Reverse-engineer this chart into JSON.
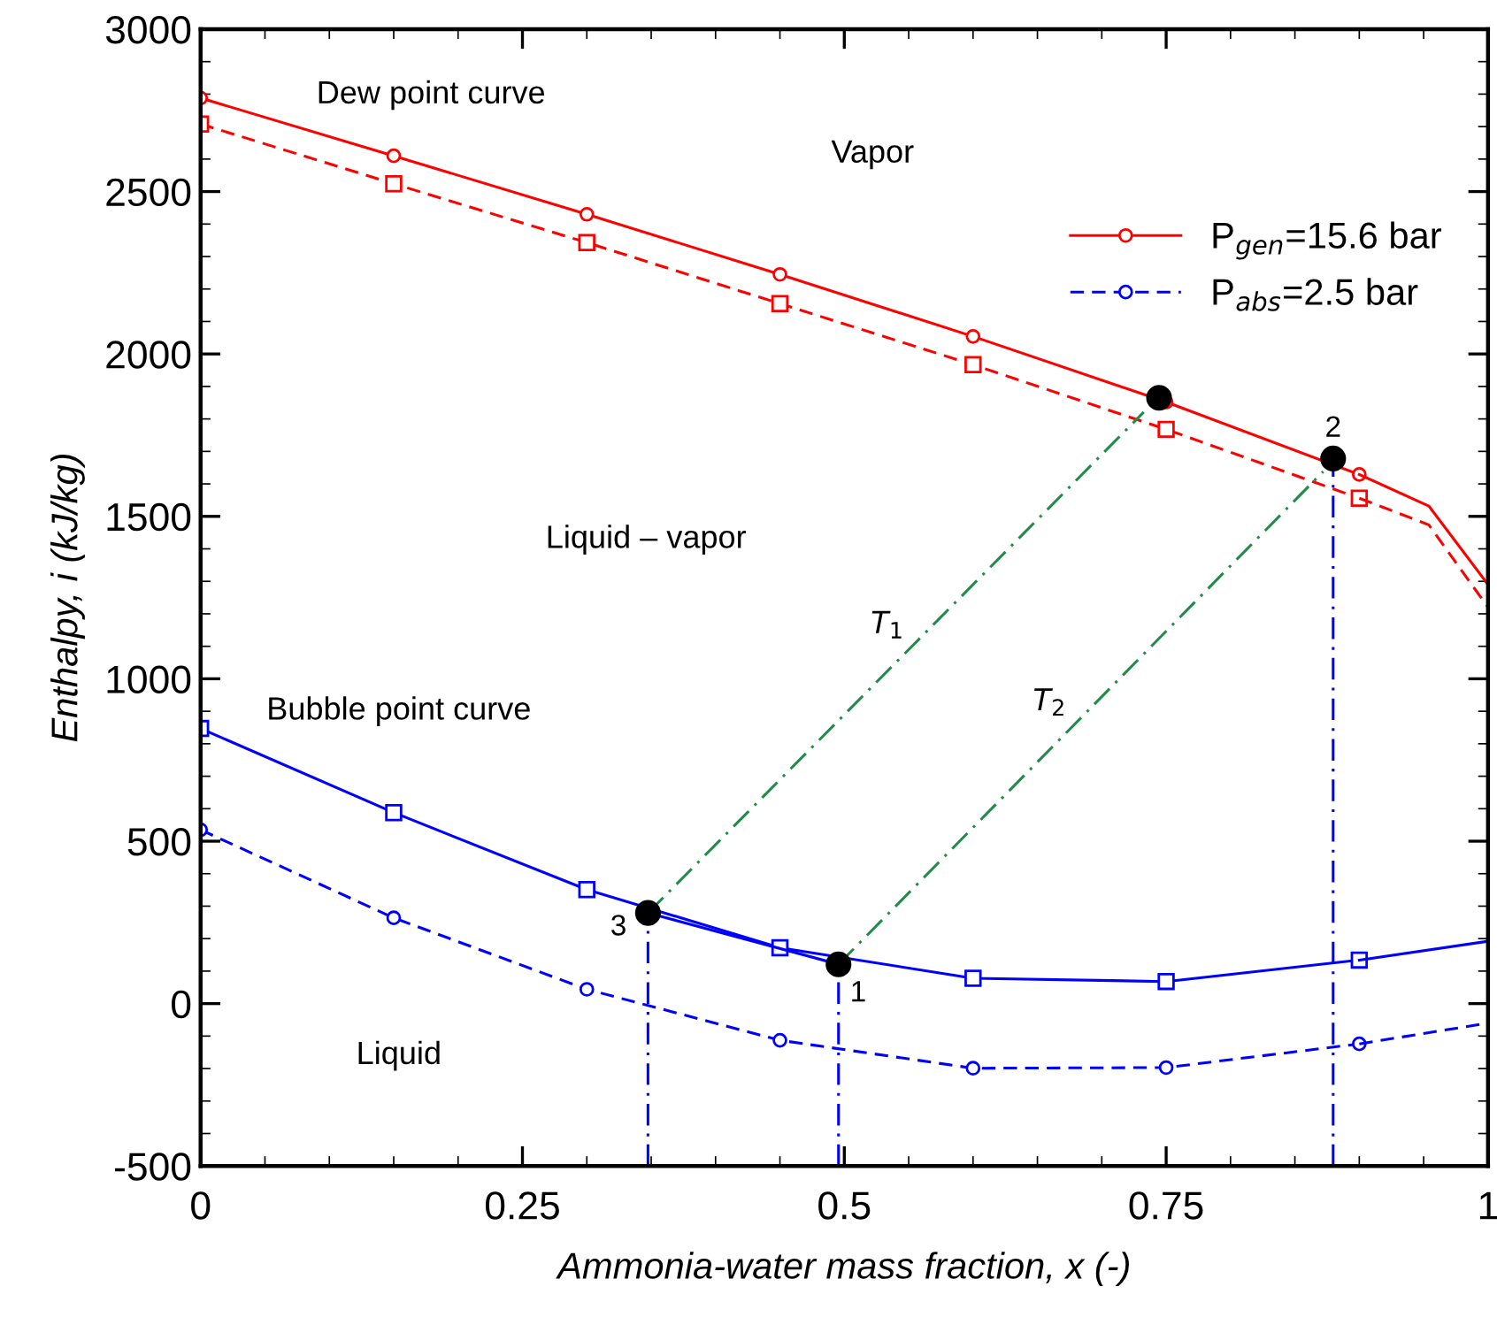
{
  "chart_data": {
    "type": "line",
    "xlabel": "Ammonia-water mass fraction, x (-)",
    "ylabel": "Enthalpy, i (kJ/kg)",
    "xlim": [
      0,
      1
    ],
    "ylim": [
      -500,
      3000
    ],
    "xticks": [
      0,
      0.25,
      0.5,
      0.75,
      1
    ],
    "yticks": [
      -500,
      0,
      500,
      1000,
      1500,
      2000,
      2500,
      3000
    ],
    "grid": false,
    "legend": "top right",
    "series": [
      {
        "name": "P$_{gen}$=15.6 bar",
        "color": "#ff0000",
        "x": [
          0,
          0.15,
          0.3,
          0.45,
          0.6,
          0.75,
          0.9
        ],
        "values": [
          2788,
          2610,
          2430,
          2245,
          2054,
          1852,
          1629
        ],
        "marker": "circle",
        "line_style": "solid"
      },
      {
        "color": "#ff0000",
        "x": [
          0.9,
          0.954,
          1
        ],
        "values": [
          1629,
          1532,
          1290
        ],
        "marker": "none",
        "line_style": "solid"
      },
      {
        "color": "#ff0000",
        "x": [
          0,
          0.15,
          0.3,
          0.45,
          0.6,
          0.75,
          0.9
        ],
        "values": [
          2708,
          2524,
          2343,
          2155,
          1967,
          1768,
          1556
        ],
        "marker": "square",
        "line_style": "dashed"
      },
      {
        "color": "#ff0000",
        "x": [
          0.9,
          0.954,
          1
        ],
        "values": [
          1556,
          1474,
          1220
        ],
        "marker": "none",
        "line_style": "dashed"
      },
      {
        "color": "#0000ff",
        "x": [
          0,
          0.15,
          0.3,
          0.45,
          0.6,
          0.75,
          0.9
        ],
        "values": [
          847,
          588,
          351,
          172,
          78,
          68,
          134
        ],
        "marker": "square",
        "line_style": "solid"
      },
      {
        "color": "#0000ff",
        "x": [
          0.9,
          1
        ],
        "values": [
          134,
          192
        ],
        "marker": "none",
        "line_style": "solid"
      },
      {
        "name": "P$_{abs}$=2.5 bar",
        "color": "#0000ff",
        "x": [
          0,
          0.15,
          0.3,
          0.45,
          0.6,
          0.75,
          0.9
        ],
        "values": [
          535,
          264,
          44,
          -113,
          -199,
          -197,
          -124
        ],
        "marker": "circle",
        "line_style": "dashed"
      },
      {
        "color": "#0000ff",
        "x": [
          0.9,
          1
        ],
        "values": [
          -124,
          -60
        ],
        "marker": "none",
        "line_style": "dashed"
      },
      {
        "color": "#228b4a",
        "x": [
          0.3475,
          0.7326
        ],
        "values": [
          279,
          1821
        ],
        "marker": "none",
        "line_style": "dashdot"
      },
      {
        "color": "#228b4a",
        "x": [
          0.4955,
          0.872
        ],
        "values": [
          121,
          1638
        ],
        "marker": "none",
        "line_style": "dashdot"
      },
      {
        "color": "#0000ff",
        "x": [
          0.3475,
          0.3475
        ],
        "values": [
          -500,
          279
        ],
        "marker": "none",
        "line_style": "dashdot"
      },
      {
        "color": "#0000ff",
        "x": [
          0.4955,
          0.4955
        ],
        "values": [
          -500,
          121
        ],
        "marker": "none",
        "line_style": "dashdot"
      },
      {
        "color": "#0000ff",
        "x": [
          0.8797,
          0.8797
        ],
        "values": [
          -500,
          1678
        ],
        "marker": "none",
        "line_style": "dashdot"
      },
      {
        "color": "#0000ff",
        "x": [
          0.4955,
          0.3475
        ],
        "values": [
          121,
          279
        ],
        "marker": "none",
        "line_style": "solid"
      },
      {
        "type": "scatter",
        "color": "#000000",
        "x": [
          0.7445,
          0.8797,
          0.3475,
          0.4955
        ],
        "values": [
          1865,
          1678,
          279,
          121
        ],
        "marker": "circle"
      }
    ],
    "annotations": [
      "Dew point curve",
      "Vapor",
      "Liquid – vapor",
      "Bubble point curve",
      "Liquid",
      "T$_{1}$",
      "T$_{2}$",
      {
        "text": "2",
        "x": 0.8797,
        "y": 1678
      },
      {
        "text": "3",
        "x": 0.3475,
        "y": 279
      },
      {
        "text": "1",
        "x": 0.4955,
        "y": 121
      }
    ]
  }
}
